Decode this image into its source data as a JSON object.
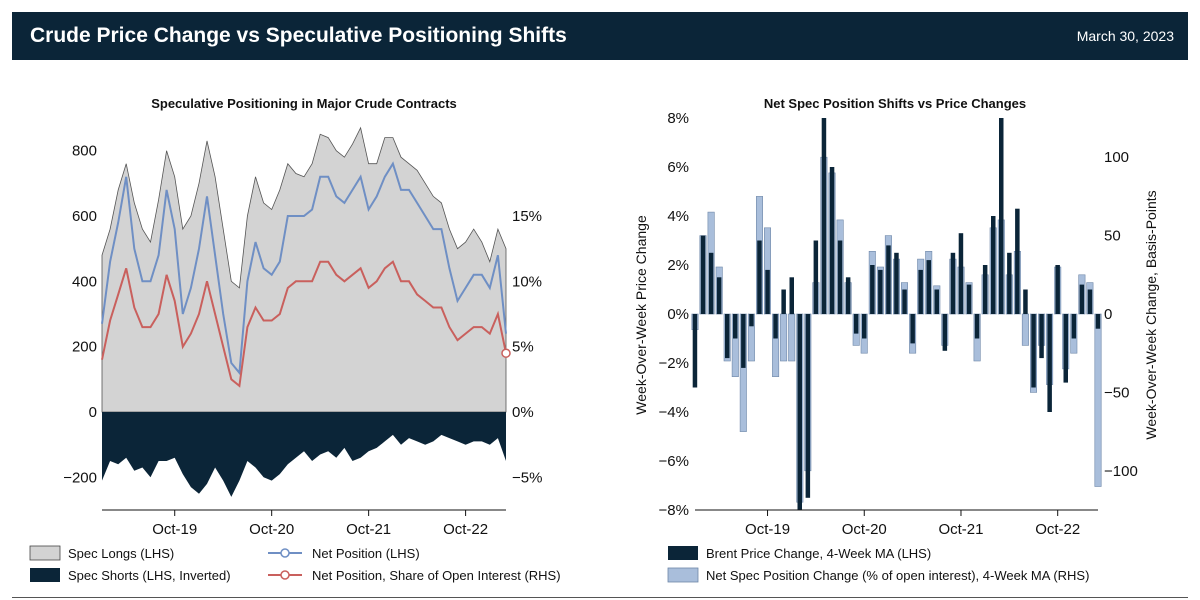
{
  "header": {
    "title": "Crude Price Change vs Speculative Positioning Shifts",
    "date": "March 30, 2023"
  },
  "colors": {
    "navy": "#0b2538",
    "gray_fill": "#d3d3d3",
    "blue_line": "#6f8fc4",
    "red_line": "#c9605d",
    "light_blue": "#a9bedb",
    "mid_blue": "#6e87a8"
  },
  "chart_data": [
    {
      "type": "area",
      "title": "Speculative Positioning in Major Crude Contracts",
      "x_ticks": [
        "Oct-19",
        "Oct-20",
        "Oct-21",
        "Oct-22"
      ],
      "y_left": {
        "range": [
          -300,
          900
        ],
        "ticks": [
          "800",
          "600",
          "400",
          "200",
          "0",
          "−200"
        ],
        "tick_values": [
          800,
          600,
          400,
          200,
          0,
          -200
        ]
      },
      "y_right": {
        "range": [
          -0.075,
          0.225
        ],
        "ticks": [
          "15%",
          "10%",
          "5%",
          "0%",
          "−5%"
        ],
        "tick_values": [
          0.15,
          0.1,
          0.05,
          0.0,
          -0.05
        ]
      },
      "x_range": [
        "2019-01",
        "2023-03"
      ],
      "dates": [
        "2019-01",
        "2019-02",
        "2019-03",
        "2019-04",
        "2019-05",
        "2019-06",
        "2019-07",
        "2019-08",
        "2019-09",
        "2019-10",
        "2019-11",
        "2019-12",
        "2020-01",
        "2020-02",
        "2020-03",
        "2020-04",
        "2020-05",
        "2020-06",
        "2020-07",
        "2020-08",
        "2020-09",
        "2020-10",
        "2020-11",
        "2020-12",
        "2021-01",
        "2021-02",
        "2021-03",
        "2021-04",
        "2021-05",
        "2021-06",
        "2021-07",
        "2021-08",
        "2021-09",
        "2021-10",
        "2021-11",
        "2021-12",
        "2022-01",
        "2022-02",
        "2022-03",
        "2022-04",
        "2022-05",
        "2022-06",
        "2022-07",
        "2022-08",
        "2022-09",
        "2022-10",
        "2022-11",
        "2022-12",
        "2023-01",
        "2023-02",
        "2023-03"
      ],
      "series": [
        {
          "name": "Spec Longs (LHS)",
          "values": [
            480,
            560,
            680,
            760,
            640,
            560,
            520,
            650,
            800,
            720,
            560,
            600,
            700,
            830,
            720,
            560,
            400,
            380,
            600,
            720,
            640,
            620,
            680,
            760,
            730,
            720,
            760,
            850,
            840,
            800,
            780,
            820,
            870,
            760,
            760,
            840,
            840,
            780,
            760,
            740,
            700,
            660,
            640,
            560,
            500,
            520,
            560,
            520,
            460,
            560,
            500
          ]
        },
        {
          "name": "Spec Shorts (LHS, Inverted)",
          "values": [
            -210,
            -150,
            -160,
            -140,
            -180,
            -170,
            -200,
            -150,
            -150,
            -140,
            -190,
            -230,
            -250,
            -220,
            -170,
            -210,
            -260,
            -210,
            -150,
            -170,
            -200,
            -210,
            -190,
            -160,
            -140,
            -120,
            -150,
            -130,
            -120,
            -140,
            -110,
            -150,
            -140,
            -120,
            -110,
            -90,
            -70,
            -100,
            -80,
            -90,
            -100,
            -90,
            -70,
            -80,
            -90,
            -100,
            -90,
            -90,
            -100,
            -80,
            -150
          ]
        },
        {
          "name": "Net Position (LHS)",
          "values": [
            270,
            460,
            580,
            720,
            500,
            400,
            400,
            480,
            680,
            560,
            300,
            380,
            500,
            660,
            480,
            300,
            150,
            120,
            400,
            520,
            440,
            420,
            460,
            600,
            600,
            600,
            620,
            720,
            720,
            660,
            640,
            680,
            720,
            620,
            660,
            720,
            760,
            680,
            680,
            640,
            600,
            560,
            560,
            440,
            340,
            380,
            420,
            420,
            380,
            480,
            240
          ]
        },
        {
          "name": "Net Position, Share of Open Interest (RHS)",
          "values": [
            0.04,
            0.07,
            0.09,
            0.11,
            0.08,
            0.065,
            0.065,
            0.075,
            0.105,
            0.085,
            0.05,
            0.06,
            0.075,
            0.1,
            0.075,
            0.05,
            0.025,
            0.02,
            0.065,
            0.08,
            0.07,
            0.07,
            0.075,
            0.095,
            0.1,
            0.1,
            0.1,
            0.115,
            0.115,
            0.105,
            0.1,
            0.105,
            0.11,
            0.095,
            0.1,
            0.11,
            0.115,
            0.1,
            0.1,
            0.09,
            0.085,
            0.08,
            0.08,
            0.065,
            0.055,
            0.06,
            0.065,
            0.065,
            0.06,
            0.075,
            0.045
          ]
        }
      ],
      "legend": [
        {
          "label": "Spec Longs (LHS)"
        },
        {
          "label": "Net Position (LHS)"
        },
        {
          "label": "Spec Shorts (LHS, Inverted)"
        },
        {
          "label": "Net Position, Share of Open Interest (RHS)"
        }
      ]
    },
    {
      "type": "bar",
      "title": "Net Spec Position Shifts vs Price Changes",
      "x_ticks": [
        "Oct-19",
        "Oct-20",
        "Oct-21",
        "Oct-22"
      ],
      "x_range": [
        "2019-01",
        "2023-03"
      ],
      "y_left": {
        "label": "Week-Over-Week Price Change",
        "range": [
          -0.08,
          0.08
        ],
        "ticks": [
          "8%",
          "6%",
          "4%",
          "2%",
          "0%",
          "−2%",
          "−4%",
          "−6%",
          "−8%"
        ],
        "tick_values": [
          0.08,
          0.06,
          0.04,
          0.02,
          0.0,
          -0.02,
          -0.04,
          -0.06,
          -0.08
        ]
      },
      "y_right": {
        "label": "Week-Over-Week Change, Basis-Points",
        "range": [
          -125,
          125
        ],
        "ticks": [
          "100",
          "50",
          "0",
          "−50",
          "−100"
        ],
        "tick_values": [
          100,
          50,
          0,
          -50,
          -100
        ]
      },
      "dates": [
        "2019-01",
        "2019-02",
        "2019-03",
        "2019-04",
        "2019-05",
        "2019-06",
        "2019-07",
        "2019-08",
        "2019-09",
        "2019-10",
        "2019-11",
        "2019-12",
        "2020-01",
        "2020-02",
        "2020-03",
        "2020-04",
        "2020-05",
        "2020-06",
        "2020-07",
        "2020-08",
        "2020-09",
        "2020-10",
        "2020-11",
        "2020-12",
        "2021-01",
        "2021-02",
        "2021-03",
        "2021-04",
        "2021-05",
        "2021-06",
        "2021-07",
        "2021-08",
        "2021-09",
        "2021-10",
        "2021-11",
        "2021-12",
        "2022-01",
        "2022-02",
        "2022-03",
        "2022-04",
        "2022-05",
        "2022-06",
        "2022-07",
        "2022-08",
        "2022-09",
        "2022-10",
        "2022-11",
        "2022-12",
        "2023-01",
        "2023-02",
        "2023-03"
      ],
      "series": [
        {
          "name": "Brent Price Change, 4-Week MA (LHS)",
          "values": [
            -0.03,
            0.032,
            0.025,
            0.015,
            -0.018,
            -0.01,
            -0.022,
            -0.005,
            0.03,
            0.018,
            -0.01,
            0.01,
            0.015,
            -0.08,
            -0.075,
            0.03,
            0.08,
            0.06,
            0.03,
            0.015,
            -0.008,
            -0.01,
            0.02,
            0.018,
            0.028,
            0.025,
            0.01,
            -0.012,
            0.018,
            0.022,
            0.01,
            -0.015,
            0.025,
            0.033,
            0.012,
            -0.01,
            0.02,
            0.04,
            0.08,
            0.025,
            0.043,
            0.01,
            -0.03,
            -0.018,
            -0.04,
            0.02,
            -0.028,
            -0.01,
            0.012,
            0.01,
            -0.006
          ]
        },
        {
          "name": "Net Spec Position Change (% of open interest), 4-Week MA (RHS)",
          "values": [
            -10,
            50,
            65,
            30,
            -30,
            -40,
            -75,
            -30,
            75,
            55,
            -40,
            -30,
            -30,
            -120,
            -100,
            20,
            100,
            90,
            60,
            20,
            -20,
            -25,
            40,
            30,
            50,
            35,
            20,
            -25,
            35,
            40,
            18,
            -20,
            35,
            30,
            20,
            -30,
            25,
            55,
            60,
            25,
            40,
            -20,
            -50,
            -20,
            -45,
            30,
            -35,
            -25,
            25,
            20,
            -110
          ]
        }
      ],
      "legend": [
        {
          "label": "Brent Price Change, 4-Week MA (LHS)"
        },
        {
          "label": "Net Spec Position Change (% of open interest), 4-Week MA (RHS)"
        }
      ]
    }
  ]
}
